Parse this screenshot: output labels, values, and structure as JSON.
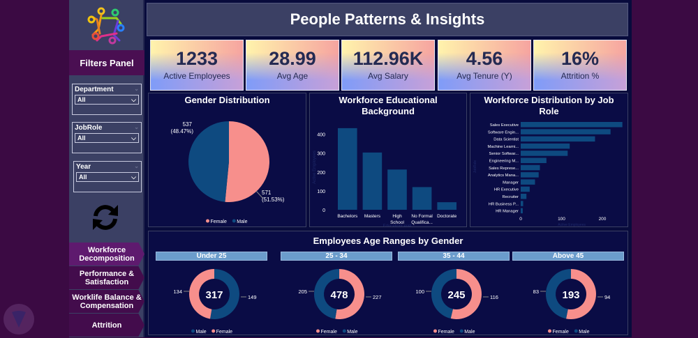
{
  "header": {
    "title": "People Patterns & Insights"
  },
  "sidebar": {
    "logo_icon": "people-circle-logo",
    "filters_title": "Filters Panel",
    "filters": [
      {
        "label": "Department",
        "value": "All"
      },
      {
        "label": "JobRole",
        "value": "All"
      },
      {
        "label": "Year",
        "value": "All"
      }
    ],
    "refresh_icon": "refresh-icon",
    "nav": [
      {
        "label": "Workforce Decomposition",
        "active": true
      },
      {
        "label": "Performance & Satisfaction"
      },
      {
        "label": "Worklife Balance & Compensation"
      },
      {
        "label": "Attrition"
      }
    ]
  },
  "kpis": [
    {
      "value": "1233",
      "label": "Active Employees"
    },
    {
      "value": "28.99",
      "label": "Avg Age"
    },
    {
      "value": "112.96K",
      "label": "Avg Salary"
    },
    {
      "value": "4.56",
      "label": "Avg Tenure (Y)"
    },
    {
      "value": "16%",
      "label": "Attrition %"
    }
  ],
  "colors": {
    "female": "#f78f8c",
    "male": "#0e4a80",
    "bar": "#0e4a80"
  },
  "chart_data": [
    {
      "type": "pie",
      "title": "Gender Distribution",
      "slices": [
        {
          "name": "Female",
          "value": 571,
          "label": "571\n(51.53%)"
        },
        {
          "name": "Male",
          "value": 537,
          "label": "537\n(48.47%)"
        }
      ],
      "legend": [
        "Female",
        "Male"
      ],
      "legend_position": "bottom"
    },
    {
      "type": "bar",
      "title": "Workforce Educational Background",
      "xlabel": "EducationLevel",
      "ylabel": "Active Employees",
      "categories": [
        "Bachelors",
        "Masters",
        "High School",
        "No Formal Qualifica...",
        "Doctorate"
      ],
      "values": [
        432,
        303,
        213,
        120,
        40
      ],
      "ylim": [
        0,
        450
      ],
      "yticks": [
        0,
        100,
        200,
        300,
        400
      ]
    },
    {
      "type": "bar",
      "orientation": "horizontal",
      "title": "Workforce Distribution by Job Role",
      "xlabel": "Active Employees",
      "ylabel": "JobRole",
      "categories": [
        "Sales Executive",
        "Software Engin...",
        "Data Scientist",
        "Machine Learni...",
        "Senior Softwar...",
        "Engineering M...",
        "Sales Represe...",
        "Analytics Mana...",
        "Manager",
        "HR Executive",
        "Recruiter",
        "HR Business P...",
        "HR Manager"
      ],
      "values": [
        249,
        220,
        182,
        120,
        115,
        63,
        47,
        44,
        35,
        22,
        14,
        6,
        5
      ],
      "xlim": [
        0,
        250
      ],
      "xticks": [
        0,
        100,
        200
      ]
    },
    {
      "type": "pie",
      "subtype": "donut",
      "title": "Employees Age Ranges by Gender",
      "groups": [
        {
          "label": "Under 25",
          "total": "317",
          "slices": [
            {
              "name": "Male",
              "value": 149
            },
            {
              "name": "Female",
              "value": 134
            }
          ],
          "legend": [
            "Male",
            "Female"
          ]
        },
        {
          "label": "25 - 34",
          "total": "478",
          "slices": [
            {
              "name": "Female",
              "value": 227
            },
            {
              "name": "Male",
              "value": 205
            }
          ],
          "legend": [
            "Female",
            "Male"
          ]
        },
        {
          "label": "35 - 44",
          "total": "245",
          "slices": [
            {
              "name": "Female",
              "value": 116
            },
            {
              "name": "Male",
              "value": 100
            }
          ],
          "legend": [
            "Female",
            "Male"
          ]
        },
        {
          "label": "Above 45",
          "total": "193",
          "slices": [
            {
              "name": "Female",
              "value": 94
            },
            {
              "name": "Male",
              "value": 83
            }
          ],
          "legend": [
            "Female",
            "Male"
          ]
        }
      ]
    }
  ]
}
